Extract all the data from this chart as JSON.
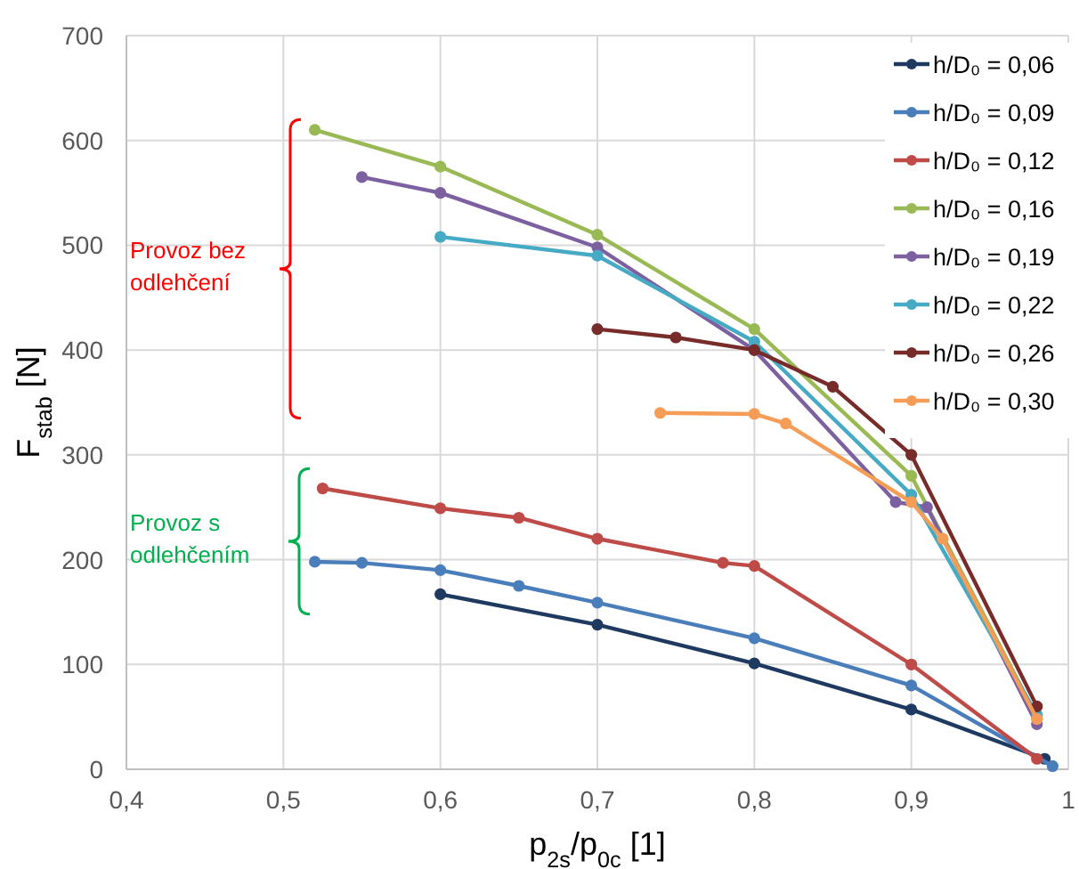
{
  "chart_data": {
    "type": "line",
    "xlabel": "p$_{2s}$/p$_{0c}$ [1]",
    "ylabel": "F$_{stab}$ [N]",
    "xlim": [
      0.4,
      1
    ],
    "xticks": [
      {
        "value": 0.4,
        "label": "0,4"
      },
      {
        "value": 0.5,
        "label": "0,5"
      },
      {
        "value": 0.6,
        "label": "0,6"
      },
      {
        "value": 0.7,
        "label": "0,7"
      },
      {
        "value": 0.8,
        "label": "0,8"
      },
      {
        "value": 0.9,
        "label": "0,9"
      },
      {
        "value": 1,
        "label": "1"
      }
    ],
    "ylim": [
      0,
      700
    ],
    "yticks": [
      0,
      100,
      200,
      300,
      400,
      500,
      600,
      700
    ],
    "grid": true,
    "legend": "right",
    "marker": "circle",
    "line_style": "solid",
    "series": [
      {
        "name": "h/D₀ = 0,06",
        "color": "#1f3a60",
        "x": [
          0.6,
          0.7,
          0.8,
          0.9,
          0.985
        ],
        "values": [
          167,
          138,
          101,
          57,
          10
        ]
      },
      {
        "name": "h/D₀ = 0,09",
        "color": "#4a7ebb",
        "x": [
          0.52,
          0.55,
          0.6,
          0.65,
          0.7,
          0.8,
          0.9,
          0.99
        ],
        "values": [
          198,
          197,
          190,
          175,
          159,
          125,
          80,
          3
        ]
      },
      {
        "name": "h/D₀ = 0,12",
        "color": "#be4b48",
        "x": [
          0.525,
          0.6,
          0.65,
          0.7,
          0.78,
          0.8,
          0.9,
          0.98
        ],
        "values": [
          268,
          249,
          240,
          220,
          197,
          194,
          100,
          10
        ]
      },
      {
        "name": "h/D₀ = 0,16",
        "color": "#98b954",
        "x": [
          0.52,
          0.6,
          0.7,
          0.8,
          0.9,
          0.98
        ],
        "values": [
          610,
          575,
          510,
          420,
          280,
          50
        ]
      },
      {
        "name": "h/D₀ = 0,19",
        "color": "#7d60a0",
        "x": [
          0.55,
          0.6,
          0.7,
          0.8,
          0.89,
          0.91,
          0.98
        ],
        "values": [
          565,
          550,
          498,
          400,
          255,
          250,
          43
        ]
      },
      {
        "name": "h/D₀ = 0,22",
        "color": "#46aac5",
        "x": [
          0.6,
          0.7,
          0.8,
          0.9,
          0.98
        ],
        "values": [
          508,
          490,
          408,
          262,
          52
        ]
      },
      {
        "name": "h/D₀ = 0,26",
        "color": "#772c2a",
        "x": [
          0.7,
          0.75,
          0.8,
          0.85,
          0.9,
          0.98
        ],
        "values": [
          420,
          412,
          400,
          365,
          300,
          60
        ]
      },
      {
        "name": "h/D₀ = 0,30",
        "color": "#f59d56",
        "x": [
          0.74,
          0.8,
          0.82,
          0.9,
          0.92,
          0.98
        ],
        "values": [
          340,
          339,
          330,
          255,
          220,
          48
        ]
      }
    ],
    "annotations": [
      "Provoz  bez odlehčení",
      "Provoz s odlehčením"
    ]
  }
}
